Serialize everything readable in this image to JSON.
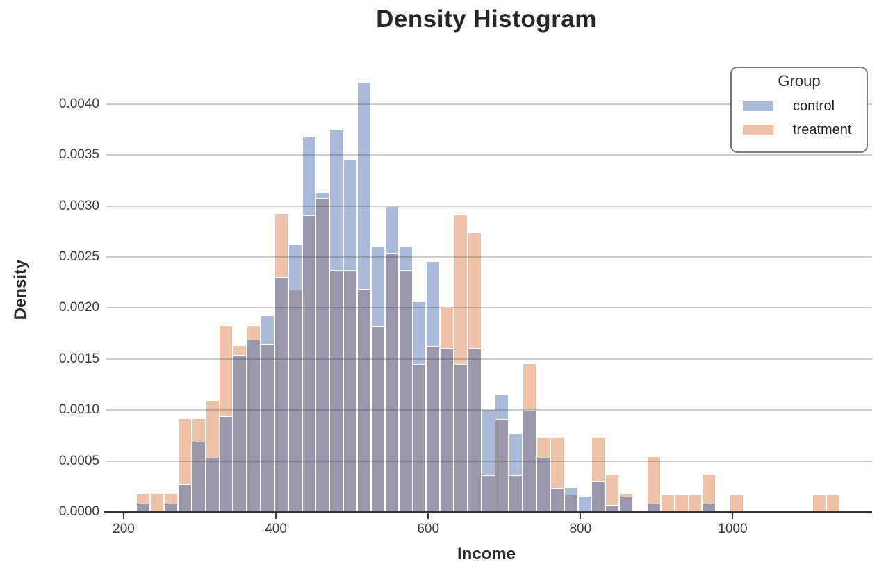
{
  "title": "Density Histogram",
  "axes": {
    "x_label": "Income",
    "y_label": "Density",
    "x_ticks": [
      200,
      400,
      600,
      800,
      1000
    ],
    "y_ticks": [
      "0.0000",
      "0.0005",
      "0.0010",
      "0.0015",
      "0.0020",
      "0.0025",
      "0.0030",
      "0.0035",
      "0.0040"
    ],
    "y_tick_values": [
      0,
      0.0005,
      0.001,
      0.0015,
      0.002,
      0.0025,
      0.003,
      0.0035,
      0.004
    ]
  },
  "legend": {
    "title": "Group",
    "items": [
      {
        "label": "control",
        "color": "#a9bbd9"
      },
      {
        "label": "treatment",
        "color": "#efc3a7"
      }
    ]
  },
  "colors": {
    "control": "#a9bbd9",
    "treatment": "#efc3a7",
    "overlap": "#9b98ac",
    "gridline": "#cccccc",
    "spine": "#333333"
  },
  "chart_data": {
    "type": "bar",
    "subtype": "overlaid-density-histogram",
    "title": "Density Histogram",
    "xlabel": "Income",
    "ylabel": "Density",
    "xlim": [
      176,
      1176
    ],
    "ylim": [
      0,
      0.00437
    ],
    "grid": true,
    "legend_position": "upper right",
    "bin_start": 216.8,
    "bin_width": 18.12,
    "series": [
      {
        "name": "control",
        "color": "#a9bbd9",
        "values": [
          8e-05,
          0,
          8e-05,
          0.00027,
          0.00069,
          0.00053,
          0.00094,
          0.00154,
          0.00169,
          0.00192,
          0.0023,
          0.00262,
          0.00368,
          0.00313,
          0.00375,
          0.00345,
          0.00421,
          0.0026,
          0.00299,
          0.0026,
          0.00206,
          0.00245,
          0.00161,
          0.00145,
          0.00161,
          0.001,
          0.00115,
          0.00076,
          0.001,
          0.00053,
          0.00023,
          0.00023,
          0.00015,
          0.0003,
          7e-05,
          0.00015,
          0,
          8e-05,
          0,
          0,
          0,
          8e-05,
          0,
          0,
          0,
          0,
          0,
          0,
          0,
          0,
          0
        ]
      },
      {
        "name": "treatment",
        "color": "#efc3a7",
        "values": [
          0.00018,
          0.00018,
          0.00018,
          0.00091,
          0.00091,
          0.00109,
          0.00182,
          0.00163,
          0.00182,
          0.00165,
          0.00292,
          0.00218,
          0.00291,
          0.00308,
          0.00237,
          0.00237,
          0.00219,
          0.00182,
          0.00254,
          0.00237,
          0.00145,
          0.00163,
          0.002,
          0.00291,
          0.00273,
          0.00036,
          0.00091,
          0.00036,
          0.00145,
          0.00073,
          0.00073,
          0.00017,
          0,
          0.00073,
          0.00036,
          0.00018,
          0,
          0.00054,
          0.00017,
          0.00017,
          0.00017,
          0.00036,
          0,
          0.00017,
          0,
          0,
          0,
          0,
          0,
          0.00017,
          0.00017
        ]
      }
    ],
    "overlap_color": "#9b98ac"
  }
}
